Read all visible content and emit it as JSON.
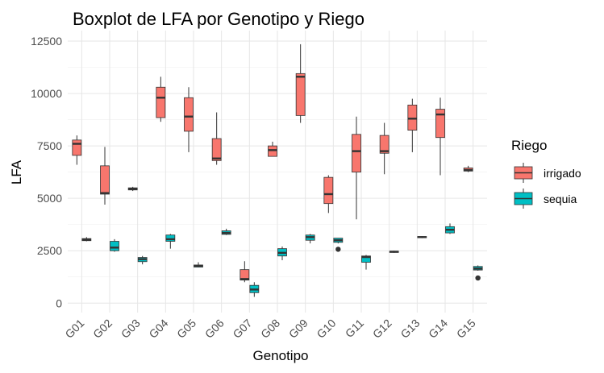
{
  "chart_data": {
    "type": "boxplot",
    "title": "Boxplot de LFA por Genotipo y Riego",
    "xlabel": "Genotipo",
    "ylabel": "LFA",
    "categories": [
      "G01",
      "G02",
      "G03",
      "G04",
      "G05",
      "G06",
      "G07",
      "G08",
      "G09",
      "G10",
      "G11",
      "G12",
      "G13",
      "G14",
      "G15"
    ],
    "y_ticks": [
      0,
      2500,
      5000,
      7500,
      10000,
      12500
    ],
    "y_tick_labels": [
      "0",
      "2500",
      "5000",
      "7500",
      "10000",
      "12500"
    ],
    "ylim": [
      -450,
      13000
    ],
    "grid": true,
    "legend": {
      "title": "Riego",
      "position": "right"
    },
    "series": [
      {
        "name": "irrigado",
        "color": "#F8766D",
        "boxes": [
          {
            "min": 6600,
            "q1": 7050,
            "median": 7600,
            "q3": 7780,
            "max": 8000,
            "outliers": []
          },
          {
            "min": 4700,
            "q1": 5200,
            "median": 5250,
            "q3": 6550,
            "max": 7450,
            "outliers": []
          },
          {
            "min": 5350,
            "q1": 5400,
            "median": 5450,
            "q3": 5500,
            "max": 5550,
            "outliers": []
          },
          {
            "min": 8650,
            "q1": 8850,
            "median": 9800,
            "q3": 10300,
            "max": 10800,
            "outliers": []
          },
          {
            "min": 7200,
            "q1": 8200,
            "median": 8900,
            "q3": 9800,
            "max": 10300,
            "outliers": []
          },
          {
            "min": 6600,
            "q1": 6800,
            "median": 6900,
            "q3": 7850,
            "max": 9100,
            "outliers": []
          },
          {
            "min": 1000,
            "q1": 1100,
            "median": 1150,
            "q3": 1600,
            "max": 2000,
            "outliers": []
          },
          {
            "min": 7000,
            "q1": 7000,
            "median": 7300,
            "q3": 7500,
            "max": 7700,
            "outliers": []
          },
          {
            "min": 8600,
            "q1": 8950,
            "median": 10800,
            "q3": 10950,
            "max": 12350,
            "outliers": []
          },
          {
            "min": 4300,
            "q1": 4750,
            "median": 5200,
            "q3": 6000,
            "max": 6100,
            "outliers": []
          },
          {
            "min": 4000,
            "q1": 6250,
            "median": 7250,
            "q3": 8050,
            "max": 8900,
            "outliers": []
          },
          {
            "min": 6150,
            "q1": 7150,
            "median": 7250,
            "q3": 8000,
            "max": 8600,
            "outliers": []
          },
          {
            "min": 7200,
            "q1": 8250,
            "median": 8800,
            "q3": 9450,
            "max": 9750,
            "outliers": []
          },
          {
            "min": 6100,
            "q1": 7900,
            "median": 9000,
            "q3": 9250,
            "max": 9800,
            "outliers": []
          },
          {
            "min": 6250,
            "q1": 6300,
            "median": 6350,
            "q3": 6450,
            "max": 6550,
            "outliers": []
          }
        ]
      },
      {
        "name": "sequia",
        "color": "#00BFC4",
        "boxes": [
          {
            "min": 2950,
            "q1": 2980,
            "median": 3030,
            "q3": 3080,
            "max": 3150,
            "outliers": []
          },
          {
            "min": 2450,
            "q1": 2500,
            "median": 2650,
            "q3": 2950,
            "max": 3050,
            "outliers": []
          },
          {
            "min": 1850,
            "q1": 1980,
            "median": 2100,
            "q3": 2180,
            "max": 2250,
            "outliers": []
          },
          {
            "min": 2600,
            "q1": 2950,
            "median": 3050,
            "q3": 3250,
            "max": 3300,
            "outliers": []
          },
          {
            "min": 1700,
            "q1": 1720,
            "median": 1780,
            "q3": 1820,
            "max": 1950,
            "outliers": []
          },
          {
            "min": 3250,
            "q1": 3280,
            "median": 3350,
            "q3": 3450,
            "max": 3550,
            "outliers": []
          },
          {
            "min": 300,
            "q1": 500,
            "median": 650,
            "q3": 850,
            "max": 1000,
            "outliers": []
          },
          {
            "min": 2050,
            "q1": 2250,
            "median": 2400,
            "q3": 2600,
            "max": 2700,
            "outliers": []
          },
          {
            "min": 2850,
            "q1": 3000,
            "median": 3150,
            "q3": 3250,
            "max": 3300,
            "outliers": []
          },
          {
            "min": 2850,
            "q1": 2900,
            "median": 3000,
            "q3": 3100,
            "max": 3100,
            "outliers": [
              2570
            ]
          },
          {
            "min": 1600,
            "q1": 1950,
            "median": 2200,
            "q3": 2250,
            "max": 2300,
            "outliers": []
          },
          {
            "min": 2400,
            "q1": 2420,
            "median": 2450,
            "q3": 2480,
            "max": 2500,
            "outliers": []
          },
          {
            "min": 3100,
            "q1": 3120,
            "median": 3150,
            "q3": 3180,
            "max": 3200,
            "outliers": []
          },
          {
            "min": 3300,
            "q1": 3350,
            "median": 3500,
            "q3": 3650,
            "max": 3800,
            "outliers": []
          },
          {
            "min": 1550,
            "q1": 1580,
            "median": 1650,
            "q3": 1750,
            "max": 1800,
            "outliers": [
              1200
            ]
          }
        ]
      }
    ]
  }
}
